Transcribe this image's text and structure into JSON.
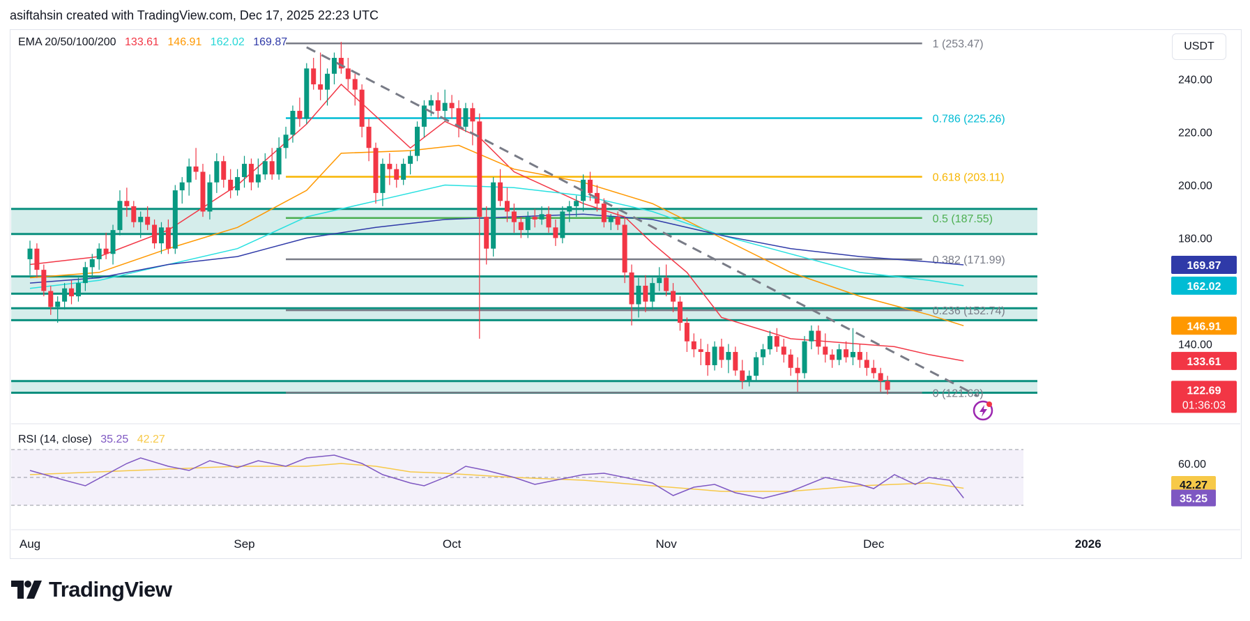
{
  "header": {
    "caption": "asiftahsin created with TradingView.com, Dec 17, 2025 22:23 UTC"
  },
  "unit": "USDT",
  "ema_legend": {
    "label": "EMA 20/50/100/200",
    "values": [
      {
        "text": "133.61",
        "color": "#f23645"
      },
      {
        "text": "146.91",
        "color": "#ff9800"
      },
      {
        "text": "162.02",
        "color": "#26e0e0"
      },
      {
        "text": "169.87",
        "color": "#2f3aa8"
      }
    ]
  },
  "rsi_legend": {
    "label": "RSI (14, close)",
    "values": [
      {
        "text": "35.25",
        "color": "#7e57c2"
      },
      {
        "text": "42.27",
        "color": "#f7c948"
      }
    ]
  },
  "logo_text": "TradingView",
  "icons": {
    "logo": "tradingview-logo-icon",
    "alert": "lightning-alert-icon"
  },
  "chart_data": {
    "type": "candlestick",
    "title": "",
    "price_range": [
      112,
      258
    ],
    "price_axis_ticks": [
      "240.00",
      "220.00",
      "200.00",
      "180.00",
      "140.00"
    ],
    "time_labels": [
      {
        "label": "Aug",
        "index": 0
      },
      {
        "label": "Sep",
        "index": 31
      },
      {
        "label": "Oct",
        "index": 61
      },
      {
        "label": "Nov",
        "index": 92
      },
      {
        "label": "Dec",
        "index": 122
      },
      {
        "label": "2026",
        "index": 153
      }
    ],
    "fib_levels": [
      {
        "label": "1 (253.47)",
        "price": 253.47,
        "color": "#787b86"
      },
      {
        "label": "0.786 (225.26)",
        "price": 225.26,
        "color": "#00bcd4"
      },
      {
        "label": "0.618 (203.11)",
        "price": 203.11,
        "color": "#f7b500"
      },
      {
        "label": "0.5 (187.55)",
        "price": 187.55,
        "color": "#4caf50"
      },
      {
        "label": "0.382 (171.99)",
        "price": 171.99,
        "color": "#787b86"
      },
      {
        "label": "0.236 (152.74)",
        "price": 152.74,
        "color": "#787b86"
      },
      {
        "label": "0 (121.63)",
        "price": 121.63,
        "color": "#787b86"
      }
    ],
    "zones": [
      {
        "top": 191,
        "bottom": 181.5
      },
      {
        "top": 165.5,
        "bottom": 159
      },
      {
        "top": 153.5,
        "bottom": 149
      },
      {
        "top": 126,
        "bottom": 121.6
      }
    ],
    "price_labels": [
      {
        "text": "169.87",
        "price": 169.87,
        "color": "#2f3aa8"
      },
      {
        "text": "162.02",
        "price": 162.02,
        "color": "#00bcd4"
      },
      {
        "text": "146.91",
        "price": 146.91,
        "color": "#ff9800"
      },
      {
        "text": "133.61",
        "price": 133.61,
        "color": "#f23645"
      },
      {
        "text": "122.69",
        "price": 122.69,
        "color": "#f23645"
      }
    ],
    "countdown": "01:36:03",
    "candles": [
      [
        172,
        179,
        166,
        176
      ],
      [
        176,
        178,
        165,
        168
      ],
      [
        168,
        170,
        158,
        160
      ],
      [
        160,
        162,
        151,
        154
      ],
      [
        154,
        158,
        148,
        156
      ],
      [
        156,
        163,
        153,
        161
      ],
      [
        161,
        164,
        155,
        158
      ],
      [
        158,
        165,
        156,
        163
      ],
      [
        163,
        171,
        160,
        169
      ],
      [
        169,
        174,
        165,
        172
      ],
      [
        172,
        178,
        168,
        176
      ],
      [
        176,
        182,
        172,
        174
      ],
      [
        174,
        185,
        170,
        183
      ],
      [
        183,
        198,
        181,
        194
      ],
      [
        194,
        199,
        188,
        192
      ],
      [
        192,
        194,
        184,
        186
      ],
      [
        186,
        190,
        180,
        188
      ],
      [
        188,
        192,
        183,
        185
      ],
      [
        185,
        187,
        176,
        178
      ],
      [
        178,
        186,
        174,
        184
      ],
      [
        184,
        187,
        174,
        176
      ],
      [
        176,
        200,
        174,
        198
      ],
      [
        198,
        203,
        193,
        201
      ],
      [
        201,
        210,
        196,
        207
      ],
      [
        207,
        214,
        202,
        205
      ],
      [
        205,
        208,
        188,
        190
      ],
      [
        190,
        204,
        187,
        201
      ],
      [
        201,
        212,
        197,
        209
      ],
      [
        209,
        211,
        199,
        202
      ],
      [
        202,
        206,
        195,
        198
      ],
      [
        198,
        206,
        196,
        203
      ],
      [
        203,
        211,
        199,
        208
      ],
      [
        208,
        210,
        198,
        201
      ],
      [
        201,
        210,
        199,
        204
      ],
      [
        204,
        212,
        202,
        209
      ],
      [
        209,
        214,
        202,
        204
      ],
      [
        204,
        218,
        202,
        214
      ],
      [
        214,
        222,
        210,
        219
      ],
      [
        219,
        230,
        216,
        228
      ],
      [
        228,
        233,
        222,
        225
      ],
      [
        225,
        246,
        223,
        244
      ],
      [
        244,
        248,
        236,
        238
      ],
      [
        238,
        250,
        232,
        236
      ],
      [
        236,
        244,
        230,
        242
      ],
      [
        242,
        250,
        238,
        248
      ],
      [
        248,
        254,
        242,
        244
      ],
      [
        244,
        248,
        236,
        240
      ],
      [
        240,
        242,
        230,
        236
      ],
      [
        236,
        238,
        218,
        222
      ],
      [
        222,
        225,
        209,
        214
      ],
      [
        214,
        216,
        193,
        197
      ],
      [
        197,
        210,
        192,
        208
      ],
      [
        208,
        212,
        200,
        206
      ],
      [
        206,
        208,
        199,
        202
      ],
      [
        202,
        210,
        200,
        208
      ],
      [
        208,
        213,
        204,
        211
      ],
      [
        211,
        224,
        209,
        222
      ],
      [
        222,
        232,
        218,
        230
      ],
      [
        230,
        234,
        226,
        232
      ],
      [
        232,
        235,
        225,
        228
      ],
      [
        228,
        236,
        224,
        231
      ],
      [
        231,
        234,
        225,
        229
      ],
      [
        229,
        232,
        218,
        222
      ],
      [
        222,
        231,
        220,
        229
      ],
      [
        229,
        231,
        215,
        224
      ],
      [
        224,
        227,
        142,
        188
      ],
      [
        188,
        192,
        170,
        176
      ],
      [
        176,
        203,
        173,
        201
      ],
      [
        201,
        206,
        192,
        194
      ],
      [
        194,
        199,
        186,
        190
      ],
      [
        190,
        193,
        182,
        186
      ],
      [
        186,
        188,
        180,
        183
      ],
      [
        183,
        190,
        180,
        188
      ],
      [
        188,
        191,
        184,
        187
      ],
      [
        187,
        192,
        185,
        189
      ],
      [
        189,
        192,
        182,
        184
      ],
      [
        184,
        187,
        177,
        180
      ],
      [
        180,
        192,
        178,
        190
      ],
      [
        190,
        194,
        186,
        192
      ],
      [
        192,
        196,
        188,
        194
      ],
      [
        194,
        204,
        190,
        202
      ],
      [
        202,
        205,
        194,
        197
      ],
      [
        197,
        200,
        190,
        193
      ],
      [
        193,
        195,
        184,
        186
      ],
      [
        186,
        189,
        183,
        188
      ],
      [
        188,
        190,
        183,
        185
      ],
      [
        185,
        188,
        163,
        167
      ],
      [
        167,
        170,
        147,
        155
      ],
      [
        155,
        165,
        150,
        162
      ],
      [
        162,
        166,
        152,
        156
      ],
      [
        156,
        165,
        153,
        163
      ],
      [
        163,
        169,
        160,
        165
      ],
      [
        165,
        170,
        158,
        160
      ],
      [
        160,
        163,
        152,
        156
      ],
      [
        156,
        158,
        145,
        148
      ],
      [
        148,
        150,
        137,
        141
      ],
      [
        141,
        144,
        135,
        138
      ],
      [
        138,
        142,
        132,
        137
      ],
      [
        137,
        140,
        128,
        132
      ],
      [
        132,
        141,
        130,
        139
      ],
      [
        139,
        142,
        131,
        134
      ],
      [
        134,
        140,
        129,
        137
      ],
      [
        137,
        139,
        128,
        130
      ],
      [
        130,
        134,
        123,
        126
      ],
      [
        126,
        130,
        124,
        128
      ],
      [
        128,
        137,
        126,
        135
      ],
      [
        135,
        140,
        132,
        138
      ],
      [
        138,
        145,
        136,
        143
      ],
      [
        143,
        146,
        137,
        139
      ],
      [
        139,
        142,
        133,
        136
      ],
      [
        136,
        138,
        128,
        131
      ],
      [
        131,
        135,
        122,
        129
      ],
      [
        129,
        143,
        127,
        141
      ],
      [
        141,
        147,
        138,
        145
      ],
      [
        145,
        147,
        136,
        139
      ],
      [
        139,
        144,
        133,
        136
      ],
      [
        136,
        138,
        131,
        134
      ],
      [
        134,
        140,
        132,
        138
      ],
      [
        138,
        141,
        133,
        135
      ],
      [
        135,
        146,
        132,
        137
      ],
      [
        137,
        140,
        131,
        134
      ],
      [
        134,
        137,
        128,
        131
      ],
      [
        131,
        134,
        127,
        129
      ],
      [
        129,
        131,
        122,
        126
      ],
      [
        126,
        128,
        121,
        122.69
      ]
    ],
    "emas": [
      {
        "name": "EMA 20",
        "color": "#f23645",
        "points": [
          [
            0,
            170
          ],
          [
            10,
            173
          ],
          [
            20,
            183
          ],
          [
            30,
            200
          ],
          [
            40,
            223
          ],
          [
            45,
            238
          ],
          [
            55,
            214
          ],
          [
            60,
            224
          ],
          [
            65,
            218
          ],
          [
            70,
            205
          ],
          [
            80,
            193
          ],
          [
            86,
            188
          ],
          [
            90,
            178
          ],
          [
            95,
            167
          ],
          [
            100,
            150
          ],
          [
            110,
            142
          ],
          [
            120,
            140
          ],
          [
            125,
            139
          ],
          [
            130,
            136
          ],
          [
            135,
            133.61
          ]
        ]
      },
      {
        "name": "EMA 50",
        "color": "#ff9800",
        "points": [
          [
            0,
            165
          ],
          [
            10,
            167
          ],
          [
            20,
            176
          ],
          [
            30,
            184
          ],
          [
            40,
            198
          ],
          [
            45,
            212
          ],
          [
            55,
            213
          ],
          [
            62,
            215
          ],
          [
            70,
            206
          ],
          [
            80,
            201
          ],
          [
            90,
            193
          ],
          [
            100,
            180
          ],
          [
            110,
            167
          ],
          [
            120,
            158
          ],
          [
            130,
            151
          ],
          [
            135,
            146.91
          ]
        ]
      },
      {
        "name": "EMA 100",
        "color": "#26e0e0",
        "points": [
          [
            0,
            161
          ],
          [
            10,
            164
          ],
          [
            20,
            170
          ],
          [
            30,
            176
          ],
          [
            40,
            188
          ],
          [
            50,
            194
          ],
          [
            60,
            200
          ],
          [
            70,
            199
          ],
          [
            80,
            196
          ],
          [
            90,
            190
          ],
          [
            100,
            181
          ],
          [
            110,
            174
          ],
          [
            120,
            167
          ],
          [
            130,
            164
          ],
          [
            135,
            162.02
          ]
        ]
      },
      {
        "name": "EMA 200",
        "color": "#2f3aa8",
        "points": [
          [
            0,
            163
          ],
          [
            10,
            165
          ],
          [
            20,
            170
          ],
          [
            30,
            173
          ],
          [
            40,
            180
          ],
          [
            50,
            184
          ],
          [
            60,
            187
          ],
          [
            70,
            188
          ],
          [
            80,
            189
          ],
          [
            90,
            187
          ],
          [
            100,
            181
          ],
          [
            110,
            176
          ],
          [
            120,
            173
          ],
          [
            130,
            171
          ],
          [
            135,
            169.87
          ]
        ]
      }
    ],
    "trendline": {
      "from": [
        40,
        252
      ],
      "to": [
        135,
        122
      ]
    },
    "rsi": {
      "axis_ticks": [
        "60.00"
      ],
      "value_label": "35.25",
      "signal_label": "42.27",
      "line_points": [
        [
          0,
          55
        ],
        [
          5,
          48
        ],
        [
          8,
          44
        ],
        [
          11,
          52
        ],
        [
          14,
          60
        ],
        [
          16,
          64
        ],
        [
          20,
          58
        ],
        [
          23,
          55
        ],
        [
          26,
          62
        ],
        [
          30,
          57
        ],
        [
          33,
          62
        ],
        [
          37,
          58
        ],
        [
          40,
          64
        ],
        [
          44,
          66
        ],
        [
          48,
          60
        ],
        [
          51,
          52
        ],
        [
          55,
          46
        ],
        [
          57,
          44
        ],
        [
          61,
          52
        ],
        [
          63,
          58
        ],
        [
          66,
          55
        ],
        [
          70,
          50
        ],
        [
          73,
          45
        ],
        [
          76,
          48
        ],
        [
          80,
          52
        ],
        [
          83,
          53
        ],
        [
          86,
          50
        ],
        [
          90,
          46
        ],
        [
          93,
          37
        ],
        [
          96,
          43
        ],
        [
          99,
          45
        ],
        [
          102,
          39
        ],
        [
          106,
          35
        ],
        [
          110,
          40
        ],
        [
          115,
          50
        ],
        [
          120,
          45
        ],
        [
          122,
          42
        ],
        [
          125,
          52
        ],
        [
          128,
          45
        ],
        [
          130,
          50
        ],
        [
          133,
          48
        ],
        [
          135,
          35.25
        ]
      ],
      "signal_points": [
        [
          0,
          52
        ],
        [
          10,
          54
        ],
        [
          20,
          56
        ],
        [
          30,
          58
        ],
        [
          40,
          58
        ],
        [
          45,
          60
        ],
        [
          50,
          58
        ],
        [
          55,
          54
        ],
        [
          60,
          53
        ],
        [
          70,
          50
        ],
        [
          80,
          48
        ],
        [
          90,
          44
        ],
        [
          100,
          40
        ],
        [
          110,
          40
        ],
        [
          120,
          44
        ],
        [
          130,
          46
        ],
        [
          135,
          42.27
        ]
      ]
    }
  }
}
